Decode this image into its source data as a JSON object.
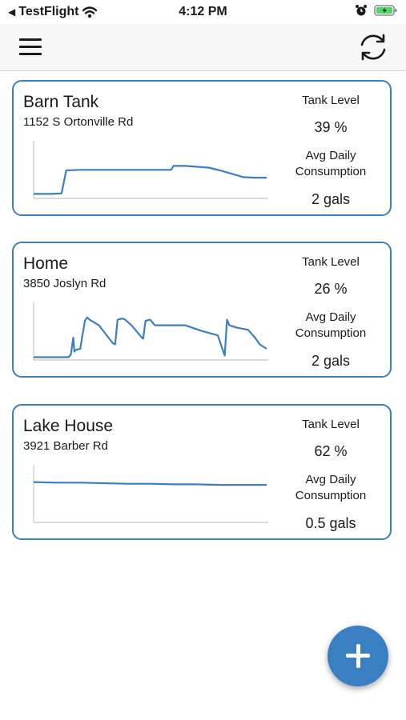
{
  "status_bar": {
    "back_label": "TestFlight",
    "time": "4:12 PM"
  },
  "colors": {
    "accent": "#3a7fc1",
    "line": "#3a7fc1"
  },
  "stat_labels": {
    "tank_level": "Tank Level",
    "avg_daily_consumption": "Avg Daily Consumption"
  },
  "tanks": [
    {
      "name": "Barn Tank",
      "address": "1152 S Ortonville Rd",
      "tank_level": "39 %",
      "consumption": "2 gals"
    },
    {
      "name": "Home",
      "address": "3850 Joslyn Rd",
      "tank_level": "26 %",
      "consumption": "2 gals"
    },
    {
      "name": "Lake House",
      "address": "3921 Barber Rd",
      "tank_level": "62 %",
      "consumption": "0.5 gals"
    }
  ],
  "chart_data": [
    {
      "type": "line",
      "title": "",
      "x": [
        0,
        8,
        12,
        14,
        20,
        50,
        59,
        60,
        65,
        75,
        80,
        85,
        90,
        95,
        100
      ],
      "values": [
        8,
        8,
        9,
        50,
        51,
        51,
        51,
        58,
        58,
        55,
        50,
        44,
        38,
        37,
        37
      ],
      "ylim": [
        0,
        100
      ]
    },
    {
      "type": "line",
      "title": "",
      "x": [
        0,
        15,
        16,
        17,
        17.5,
        18,
        20,
        22,
        23,
        24,
        28,
        34,
        35,
        36,
        38,
        39,
        42,
        46,
        47,
        48,
        50,
        52,
        65,
        72,
        79,
        82,
        83,
        84,
        87,
        92,
        95,
        97,
        100
      ],
      "values": [
        5,
        5,
        10,
        40,
        15,
        18,
        20,
        70,
        76,
        72,
        62,
        30,
        28,
        72,
        74,
        73,
        62,
        42,
        38,
        70,
        72,
        62,
        62,
        52,
        44,
        8,
        72,
        62,
        58,
        54,
        40,
        28,
        20
      ],
      "ylim": [
        0,
        100
      ]
    },
    {
      "type": "line",
      "title": "",
      "x": [
        0,
        10,
        20,
        30,
        40,
        50,
        60,
        70,
        80,
        90,
        100
      ],
      "values": [
        72,
        71,
        71,
        70,
        69,
        69,
        68,
        68,
        67,
        67,
        67
      ],
      "ylim": [
        0,
        100
      ]
    }
  ]
}
